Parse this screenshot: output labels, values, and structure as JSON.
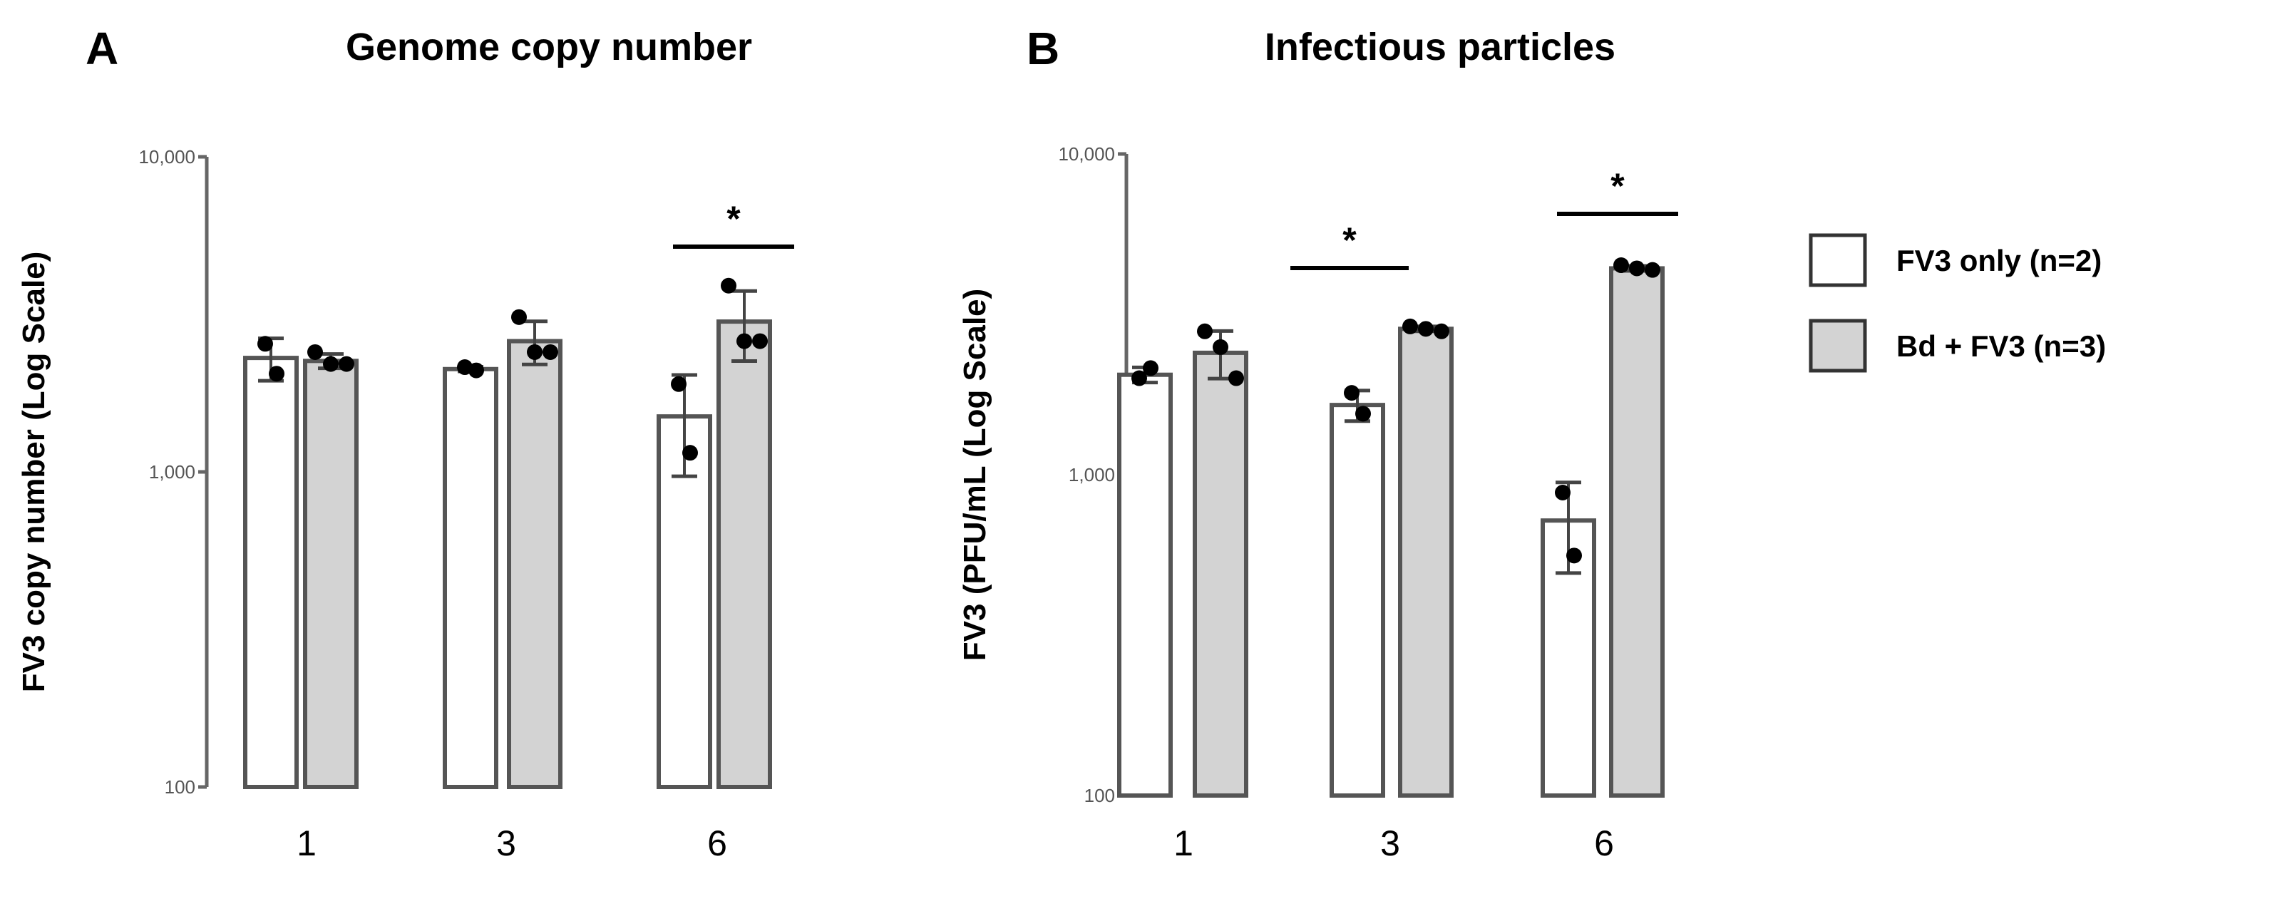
{
  "chart_data": [
    {
      "type": "bar",
      "panel_label": "A",
      "title": "Genome copy number",
      "ylabel": "FV3 copy number (Log Scale)",
      "yscale": "log",
      "ylim": [
        100,
        10000
      ],
      "yticks": [
        "100",
        "1,000",
        "10,000"
      ],
      "categories": [
        "1",
        "3",
        "6"
      ],
      "series": [
        {
          "name": "FV3 only (n=2)",
          "color": "#ffffff",
          "values": [
            2300,
            2120,
            1500
          ],
          "points": [
            [
              2550,
              2050
            ],
            [
              2150,
              2100
            ],
            [
              1900,
              1150
            ]
          ]
        },
        {
          "name": "Bd + FV3 (n=3)",
          "color": "#d3d3d3",
          "values": [
            2250,
            2600,
            3000
          ],
          "points": [
            [
              2400,
              2200,
              2200
            ],
            [
              3100,
              2400,
              2400
            ],
            [
              3900,
              2600,
              2600
            ]
          ]
        }
      ],
      "significance": [
        {
          "category": "6",
          "label": "*"
        }
      ],
      "error_bars": "SD"
    },
    {
      "type": "bar",
      "panel_label": "B",
      "title": "Infectious particles",
      "ylabel": "FV3 (PFU/mL (Log Scale)",
      "yscale": "log",
      "ylim": [
        100,
        10000
      ],
      "yticks": [
        "100",
        "1,000",
        "10,000"
      ],
      "categories": [
        "1",
        "3",
        "6"
      ],
      "series": [
        {
          "name": "FV3 only (n=2)",
          "color": "#ffffff",
          "values": [
            2050,
            1650,
            720
          ],
          "points": [
            [
              2000,
              2150
            ],
            [
              1800,
              1550
            ],
            [
              880,
              560
            ]
          ]
        },
        {
          "name": "Bd + FV3 (n=3)",
          "color": "#d3d3d3",
          "values": [
            2400,
            2850,
            4400
          ],
          "points": [
            [
              2800,
              2500,
              2000
            ],
            [
              2900,
              2850,
              2800
            ],
            [
              4500,
              4400,
              4350
            ]
          ]
        }
      ],
      "significance": [
        {
          "category": "3",
          "label": "*"
        },
        {
          "category": "6",
          "label": "*"
        }
      ],
      "error_bars": "SD"
    }
  ],
  "legend": {
    "placement": "right",
    "items": [
      {
        "label": "FV3 only (n=2)",
        "color": "#ffffff"
      },
      {
        "label": "Bd + FV3 (n=3)",
        "color": "#d3d3d3"
      }
    ]
  }
}
